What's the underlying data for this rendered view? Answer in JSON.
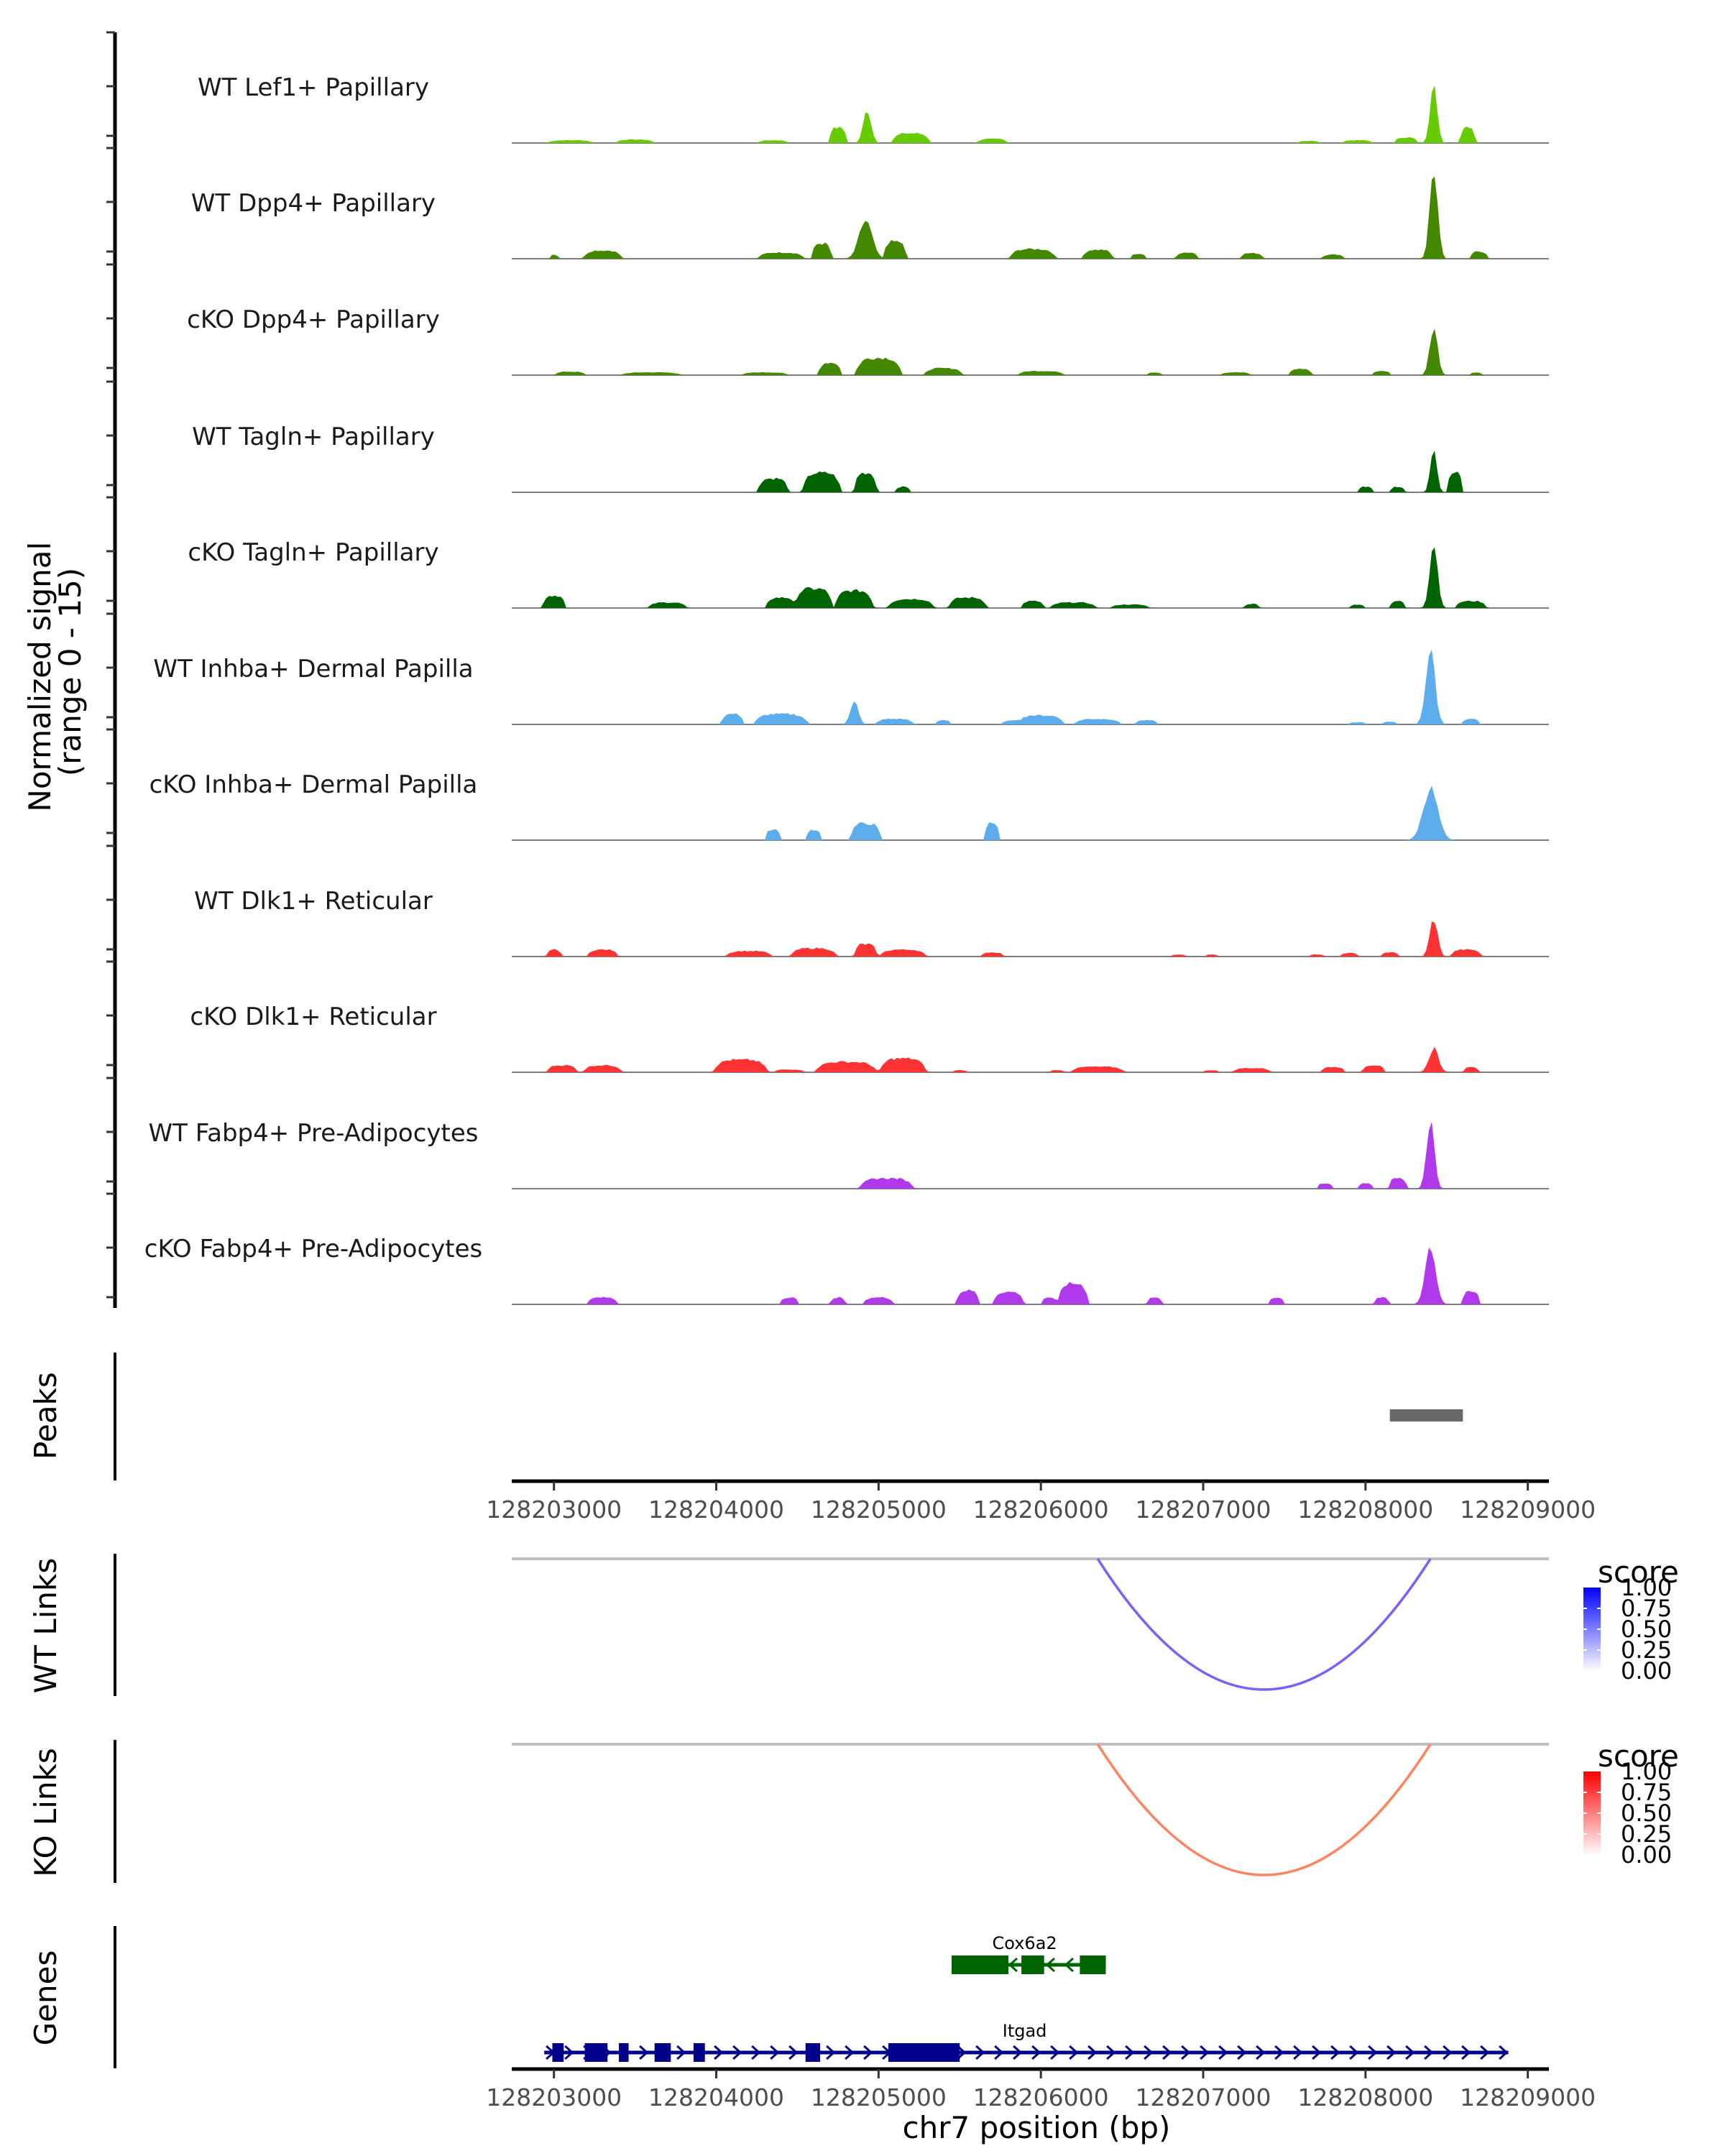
{
  "chart_data": {
    "type": "area",
    "title": "",
    "region": {
      "chrom": "chr7",
      "start": 128202740,
      "end": 128209130
    },
    "xlabel": "chr7 position (bp)",
    "ylabel": "Normalized signal\n(range 0 - 15)",
    "ylabel_lines": [
      "Normalized signal",
      "(range 0 - 15)"
    ],
    "ylim": [
      0,
      15
    ],
    "x_ticks": [
      128203000,
      128204000,
      128205000,
      128206000,
      128207000,
      128208000,
      128209000
    ],
    "x_tick_labels": [
      "128203000",
      "128204000",
      "128205000",
      "128206000",
      "128207000",
      "128208000",
      "128209000"
    ],
    "coverage_tracks": [
      {
        "name": "WT Lef1+ Papillary",
        "color": "#66CC00",
        "peaks": [
          [
            128203100,
            0.4,
            300
          ],
          [
            128203500,
            0.5,
            250
          ],
          [
            128204350,
            0.4,
            200
          ],
          [
            128204750,
            2.2,
            120
          ],
          [
            128204930,
            4.8,
            150
          ],
          [
            128205200,
            1.4,
            250
          ],
          [
            128205700,
            0.6,
            200
          ],
          [
            128207650,
            0.3,
            150
          ],
          [
            128207950,
            0.4,
            200
          ],
          [
            128208250,
            0.8,
            150
          ],
          [
            128208420,
            9.5,
            130
          ],
          [
            128208630,
            2.4,
            100
          ]
        ]
      },
      {
        "name": "WT Dpp4+ Papillary",
        "color": "#448800",
        "peaks": [
          [
            128203000,
            0.6,
            60
          ],
          [
            128203300,
            1.2,
            250
          ],
          [
            128204400,
            0.9,
            300
          ],
          [
            128204650,
            2.2,
            130
          ],
          [
            128204920,
            5.5,
            250
          ],
          [
            128205100,
            2.5,
            150
          ],
          [
            128205950,
            1.4,
            300
          ],
          [
            128206350,
            1.3,
            200
          ],
          [
            128206600,
            0.7,
            100
          ],
          [
            128206900,
            0.9,
            150
          ],
          [
            128207300,
            0.8,
            150
          ],
          [
            128207800,
            0.6,
            150
          ],
          [
            128208420,
            13.0,
            150
          ],
          [
            128208700,
            1.0,
            120
          ]
        ]
      },
      {
        "name": "cKO Dpp4+ Papillary",
        "color": "#448800",
        "peaks": [
          [
            128203100,
            0.5,
            200
          ],
          [
            128203600,
            0.4,
            400
          ],
          [
            128204300,
            0.4,
            300
          ],
          [
            128204700,
            1.8,
            150
          ],
          [
            128205000,
            2.5,
            300
          ],
          [
            128205400,
            1.0,
            250
          ],
          [
            128206000,
            0.6,
            300
          ],
          [
            128206700,
            0.4,
            100
          ],
          [
            128207200,
            0.4,
            200
          ],
          [
            128207600,
            0.9,
            150
          ],
          [
            128208100,
            0.6,
            120
          ],
          [
            128208420,
            7.0,
            150
          ],
          [
            128208680,
            0.4,
            80
          ]
        ]
      },
      {
        "name": "WT Tagln+ Papillary",
        "color": "#006400",
        "peaks": [
          [
            128204350,
            2.0,
            200
          ],
          [
            128204650,
            2.8,
            250
          ],
          [
            128204920,
            2.8,
            150
          ],
          [
            128205150,
            0.8,
            100
          ],
          [
            128208000,
            0.8,
            100
          ],
          [
            128208200,
            0.8,
            100
          ],
          [
            128208420,
            7.0,
            120
          ],
          [
            128208550,
            3.0,
            100
          ]
        ]
      },
      {
        "name": "cKO Tagln+ Papillary",
        "color": "#006400",
        "peaks": [
          [
            128203000,
            1.8,
            150
          ],
          [
            128203700,
            0.8,
            250
          ],
          [
            128204400,
            1.5,
            200
          ],
          [
            128204600,
            2.8,
            250
          ],
          [
            128204850,
            2.5,
            250
          ],
          [
            128205200,
            1.3,
            300
          ],
          [
            128205550,
            1.5,
            250
          ],
          [
            128205950,
            1.0,
            150
          ],
          [
            128206200,
            0.8,
            300
          ],
          [
            128206550,
            0.5,
            250
          ],
          [
            128207300,
            0.6,
            100
          ],
          [
            128207950,
            0.5,
            100
          ],
          [
            128208200,
            1.0,
            100
          ],
          [
            128208420,
            9.5,
            150
          ],
          [
            128208650,
            1.0,
            200
          ]
        ]
      },
      {
        "name": "WT Inhba+ Dermal Papilla",
        "color": "#5DADEC",
        "peaks": [
          [
            128204100,
            1.5,
            150
          ],
          [
            128204400,
            1.5,
            350
          ],
          [
            128204850,
            3.5,
            150
          ],
          [
            128205100,
            0.8,
            250
          ],
          [
            128205400,
            0.6,
            100
          ],
          [
            128205850,
            0.6,
            200
          ],
          [
            128206000,
            1.3,
            300
          ],
          [
            128206350,
            0.8,
            300
          ],
          [
            128206650,
            0.6,
            150
          ],
          [
            128207950,
            0.3,
            120
          ],
          [
            128208150,
            0.4,
            100
          ],
          [
            128208400,
            10.5,
            180
          ],
          [
            128208650,
            0.8,
            120
          ]
        ]
      },
      {
        "name": "cKO Inhba+ Dermal Papilla",
        "color": "#5DADEC",
        "peaks": [
          [
            128204350,
            1.5,
            100
          ],
          [
            128204600,
            1.5,
            100
          ],
          [
            128204920,
            2.4,
            200
          ],
          [
            128205700,
            2.5,
            100
          ],
          [
            128208400,
            7.5,
            280
          ]
        ]
      },
      {
        "name": "WT Dlk1+ Reticular",
        "color": "#FF3333",
        "peaks": [
          [
            128203000,
            1.0,
            100
          ],
          [
            128203300,
            1.0,
            200
          ],
          [
            128204200,
            0.8,
            300
          ],
          [
            128204600,
            1.2,
            300
          ],
          [
            128204920,
            1.8,
            150
          ],
          [
            128205150,
            1.0,
            300
          ],
          [
            128205700,
            0.6,
            150
          ],
          [
            128206850,
            0.3,
            100
          ],
          [
            128207050,
            0.3,
            80
          ],
          [
            128207700,
            0.3,
            100
          ],
          [
            128207900,
            0.5,
            120
          ],
          [
            128208150,
            0.6,
            120
          ],
          [
            128208420,
            5.5,
            150
          ],
          [
            128208620,
            1.0,
            200
          ]
        ]
      },
      {
        "name": "cKO Dlk1+ Reticular",
        "color": "#FF3333",
        "peaks": [
          [
            128203050,
            1.0,
            200
          ],
          [
            128203300,
            1.0,
            250
          ],
          [
            128204150,
            1.8,
            350
          ],
          [
            128204450,
            0.4,
            200
          ],
          [
            128204800,
            1.5,
            400
          ],
          [
            128205150,
            2.0,
            300
          ],
          [
            128205500,
            0.3,
            100
          ],
          [
            128206100,
            0.3,
            100
          ],
          [
            128206350,
            0.8,
            350
          ],
          [
            128207050,
            0.3,
            100
          ],
          [
            128207300,
            0.6,
            250
          ],
          [
            128207800,
            0.8,
            150
          ],
          [
            128208050,
            1.0,
            150
          ],
          [
            128208420,
            3.5,
            180
          ],
          [
            128208650,
            0.8,
            100
          ]
        ]
      },
      {
        "name": "WT Fabp4+ Pre-Adipocytes",
        "color": "#B03AEB",
        "peaks": [
          [
            128205050,
            1.5,
            350
          ],
          [
            128207750,
            0.8,
            100
          ],
          [
            128208000,
            0.8,
            100
          ],
          [
            128208200,
            1.5,
            120
          ],
          [
            128208400,
            10.0,
            150
          ]
        ]
      },
      {
        "name": "cKO Fabp4+ Pre-Adipocytes",
        "color": "#B03AEB",
        "peaks": [
          [
            128203300,
            1.0,
            200
          ],
          [
            128204450,
            1.0,
            120
          ],
          [
            128204750,
            1.0,
            100
          ],
          [
            128205000,
            1.0,
            200
          ],
          [
            128205550,
            2.0,
            150
          ],
          [
            128205800,
            1.8,
            200
          ],
          [
            128206050,
            1.0,
            100
          ],
          [
            128206200,
            3.0,
            200
          ],
          [
            128206700,
            1.0,
            100
          ],
          [
            128207450,
            1.0,
            100
          ],
          [
            128208100,
            1.0,
            100
          ],
          [
            128208400,
            8.5,
            200
          ],
          [
            128208650,
            1.8,
            120
          ]
        ]
      }
    ],
    "peaks_track": {
      "label": "Peaks",
      "color": "#696969",
      "regions": [
        [
          128208150,
          128208600
        ]
      ]
    },
    "link_tracks": [
      {
        "label": "WT Links",
        "links": [
          {
            "start": 128206350,
            "end": 128208400,
            "score": 0.55
          }
        ],
        "legend": {
          "title": "score",
          "low_color": "#FFFFFF",
          "high_color": "#0000FF",
          "ticks": [
            "1.00",
            "0.75",
            "0.50",
            "0.25",
            "0.00"
          ]
        }
      },
      {
        "label": "KO Links",
        "links": [
          {
            "start": 128206350,
            "end": 128208400,
            "score": 0.55
          }
        ],
        "legend": {
          "title": "score",
          "low_color": "#FFFFFF",
          "high_color": "#FF0000",
          "ticks": [
            "1.00",
            "0.75",
            "0.50",
            "0.25",
            "0.00"
          ]
        }
      }
    ],
    "genes_track": {
      "label": "Genes",
      "genes": [
        {
          "name": "Cox6a2",
          "strand": "-",
          "color": "#006400",
          "start": 128205450,
          "end": 128206400,
          "exons": [
            [
              128205450,
              128205800
            ],
            [
              128205880,
              128206020
            ],
            [
              128206240,
              128206400
            ]
          ]
        },
        {
          "name": "Itgad",
          "strand": "+",
          "color": "#00008B",
          "start": 128202940,
          "end": 128208880,
          "exons": [
            [
              128202990,
              128203060
            ],
            [
              128203190,
              128203330
            ],
            [
              128203400,
              128203460
            ],
            [
              128203620,
              128203720
            ],
            [
              128203860,
              128203930
            ],
            [
              128204550,
              128204640
            ],
            [
              128205060,
              128205500
            ]
          ]
        }
      ]
    }
  }
}
